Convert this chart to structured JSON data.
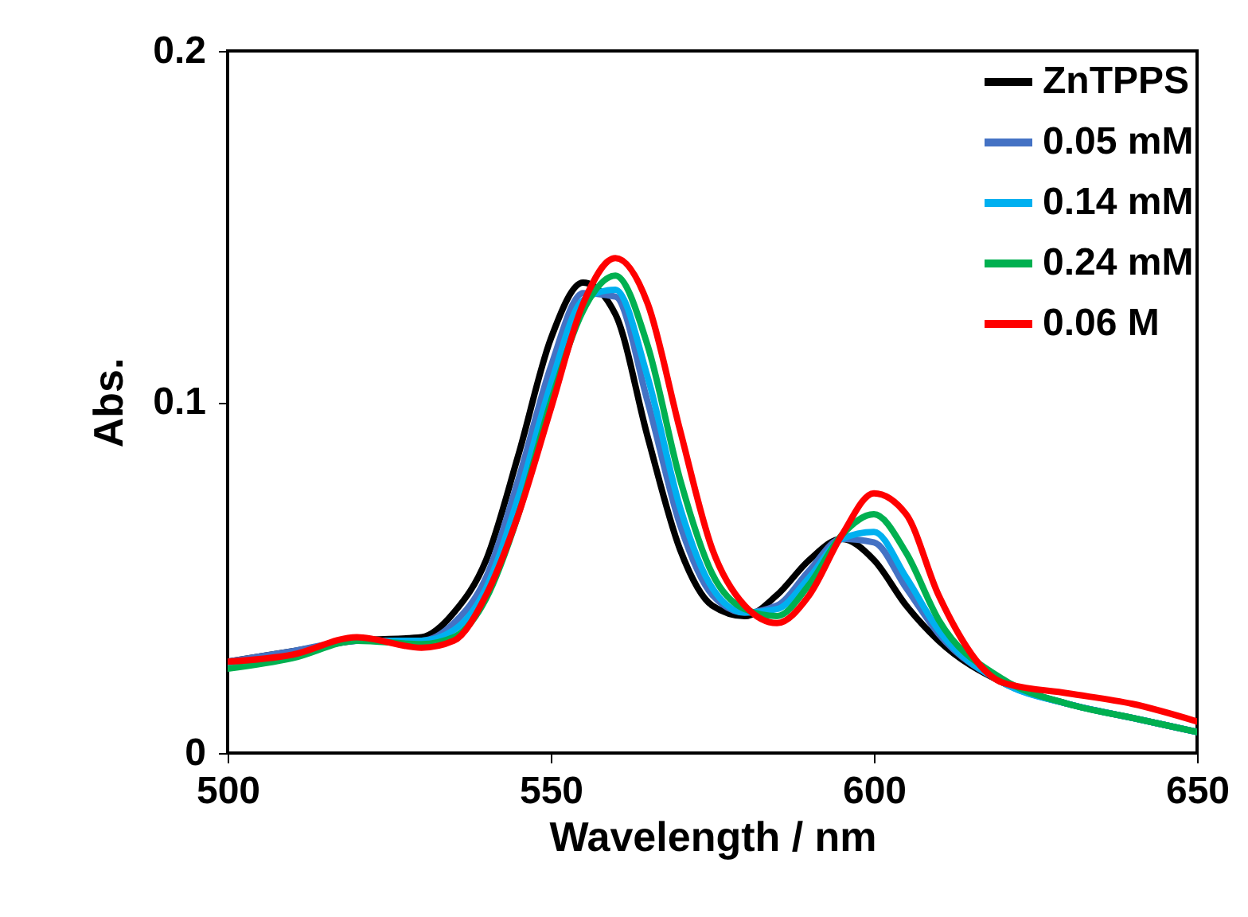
{
  "chart_data": {
    "type": "line",
    "xlabel": "Wavelength / nm",
    "ylabel": "Abs.",
    "x": [
      500,
      510,
      520,
      530,
      535,
      540,
      545,
      550,
      555,
      560,
      565,
      570,
      575,
      580,
      585,
      590,
      595,
      600,
      605,
      610,
      620,
      630,
      640,
      650
    ],
    "series": [
      {
        "name": "ZnTPPS",
        "color": "#000000",
        "values": [
          0.026,
          0.029,
          0.032,
          0.033,
          0.04,
          0.055,
          0.085,
          0.118,
          0.134,
          0.125,
          0.09,
          0.058,
          0.042,
          0.039,
          0.045,
          0.055,
          0.061,
          0.055,
          0.042,
          0.032,
          0.02,
          0.014,
          0.01,
          0.006
        ]
      },
      {
        "name": "0.05 mM",
        "color": "#4472c4",
        "values": [
          0.026,
          0.029,
          0.032,
          0.032,
          0.037,
          0.05,
          0.078,
          0.11,
          0.131,
          0.13,
          0.1,
          0.065,
          0.045,
          0.04,
          0.042,
          0.052,
          0.061,
          0.06,
          0.047,
          0.034,
          0.02,
          0.014,
          0.01,
          0.006
        ]
      },
      {
        "name": "0.14 mM",
        "color": "#00b0f0",
        "values": [
          0.025,
          0.028,
          0.032,
          0.032,
          0.035,
          0.047,
          0.073,
          0.105,
          0.129,
          0.132,
          0.107,
          0.07,
          0.047,
          0.04,
          0.041,
          0.05,
          0.061,
          0.063,
          0.05,
          0.035,
          0.02,
          0.014,
          0.01,
          0.006
        ]
      },
      {
        "name": "0.24 mM",
        "color": "#00b050",
        "values": [
          0.024,
          0.027,
          0.032,
          0.031,
          0.033,
          0.044,
          0.068,
          0.1,
          0.126,
          0.136,
          0.116,
          0.078,
          0.051,
          0.041,
          0.039,
          0.048,
          0.062,
          0.068,
          0.057,
          0.038,
          0.021,
          0.014,
          0.01,
          0.006
        ]
      },
      {
        "name": "0.06 M",
        "color": "#ff0000",
        "values": [
          0.026,
          0.028,
          0.033,
          0.03,
          0.032,
          0.045,
          0.068,
          0.098,
          0.128,
          0.141,
          0.128,
          0.092,
          0.058,
          0.042,
          0.037,
          0.045,
          0.062,
          0.074,
          0.068,
          0.045,
          0.02,
          0.017,
          0.014,
          0.009
        ]
      }
    ],
    "xlim": [
      500,
      650
    ],
    "xticks": [
      500,
      550,
      600,
      650
    ],
    "ylim": [
      0,
      0.2
    ],
    "yticks": [
      0,
      0.1,
      0.2
    ],
    "legend": "top right",
    "grid": false,
    "marker": "none",
    "line_style": "solid"
  }
}
